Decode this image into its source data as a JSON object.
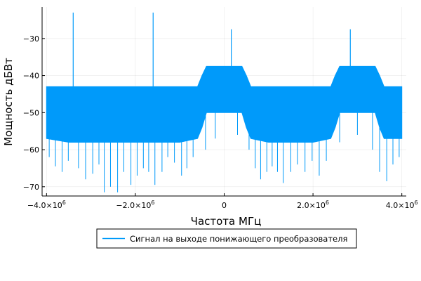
{
  "chart_data": {
    "type": "line",
    "title": "",
    "xlabel": "Частота МГц",
    "ylabel": "Мощность дБВт",
    "xlim": [
      -4100000,
      4100000
    ],
    "ylim": [
      -72.5,
      -21.5
    ],
    "x_ticks": [
      {
        "value": -4000000,
        "mantissa": "−4.0×10",
        "exponent": "6"
      },
      {
        "value": -2000000,
        "mantissa": "−2.0×10",
        "exponent": "6"
      },
      {
        "value": 0,
        "mantissa": "0",
        "exponent": ""
      },
      {
        "value": 2000000,
        "mantissa": "2.0×10",
        "exponent": "6"
      },
      {
        "value": 4000000,
        "mantissa": "4.0×10",
        "exponent": "6"
      }
    ],
    "y_ticks": [
      {
        "value": -30,
        "label": "−30"
      },
      {
        "value": -40,
        "label": "−40"
      },
      {
        "value": -50,
        "label": "−50"
      },
      {
        "value": -60,
        "label": "−60"
      },
      {
        "value": -70,
        "label": "−70"
      }
    ],
    "grid": true,
    "legend_position": "bottom-outside",
    "series": [
      {
        "name": "Сигнал на выходе понижающего преобразователя",
        "color": "#009AFA",
        "band": {
          "x": [
            -4000000,
            -3500000,
            -3000000,
            -2500000,
            -2000000,
            -1500000,
            -1000000,
            -600000,
            -500000,
            -400000,
            0,
            400000,
            500000,
            600000,
            1000000,
            1500000,
            2000000,
            2400000,
            2500000,
            2600000,
            3000000,
            3400000,
            3500000,
            3600000,
            4000000
          ],
          "upper": [
            -43,
            -43,
            -43,
            -43,
            -43,
            -43,
            -43,
            -43,
            -40,
            -37.5,
            -37.5,
            -37.5,
            -40,
            -43,
            -43,
            -43,
            -43,
            -43,
            -40,
            -37.5,
            -37.5,
            -37.5,
            -40,
            -43,
            -43
          ],
          "lower": [
            -57,
            -58,
            -58,
            -58,
            -58,
            -58,
            -58,
            -57,
            -54,
            -50,
            -50,
            -50,
            -54,
            -57,
            -58,
            -58,
            -58,
            -57,
            -54,
            -50,
            -50,
            -50,
            -54,
            -57,
            -57
          ]
        },
        "spikes": [
          {
            "x": -3400000,
            "y": -23
          },
          {
            "x": -1600000,
            "y": -23
          },
          {
            "x": 160000,
            "y": -27.5
          },
          {
            "x": 2840000,
            "y": -27.5
          }
        ],
        "dips": [
          {
            "x": -3940000,
            "y": -62
          },
          {
            "x": -3800000,
            "y": -64.5
          },
          {
            "x": -3650000,
            "y": -66
          },
          {
            "x": -3510000,
            "y": -63
          },
          {
            "x": -3280000,
            "y": -65
          },
          {
            "x": -3120000,
            "y": -68
          },
          {
            "x": -2960000,
            "y": -66.5
          },
          {
            "x": -2820000,
            "y": -64
          },
          {
            "x": -2700000,
            "y": -71.5
          },
          {
            "x": -2560000,
            "y": -70
          },
          {
            "x": -2400000,
            "y": -71.5
          },
          {
            "x": -2260000,
            "y": -66
          },
          {
            "x": -2100000,
            "y": -69.5
          },
          {
            "x": -1960000,
            "y": -67
          },
          {
            "x": -1820000,
            "y": -65
          },
          {
            "x": -1700000,
            "y": -66
          },
          {
            "x": -1560000,
            "y": -69.5
          },
          {
            "x": -1400000,
            "y": -66
          },
          {
            "x": -1270000,
            "y": -62
          },
          {
            "x": -1120000,
            "y": -63.5
          },
          {
            "x": -960000,
            "y": -67
          },
          {
            "x": -840000,
            "y": -65
          },
          {
            "x": -700000,
            "y": -62
          },
          {
            "x": -420000,
            "y": -60
          },
          {
            "x": -200000,
            "y": -57
          },
          {
            "x": 300000,
            "y": -56
          },
          {
            "x": 560000,
            "y": -60
          },
          {
            "x": 700000,
            "y": -65
          },
          {
            "x": 820000,
            "y": -68
          },
          {
            "x": 960000,
            "y": -66
          },
          {
            "x": 1080000,
            "y": -64.5
          },
          {
            "x": 1200000,
            "y": -66
          },
          {
            "x": 1330000,
            "y": -69
          },
          {
            "x": 1500000,
            "y": -66
          },
          {
            "x": 1650000,
            "y": -64
          },
          {
            "x": 1820000,
            "y": -66
          },
          {
            "x": 1980000,
            "y": -63
          },
          {
            "x": 2140000,
            "y": -67
          },
          {
            "x": 2300000,
            "y": -63
          },
          {
            "x": 2600000,
            "y": -58
          },
          {
            "x": 3000000,
            "y": -56
          },
          {
            "x": 3340000,
            "y": -60
          },
          {
            "x": 3500000,
            "y": -66
          },
          {
            "x": 3660000,
            "y": -68.5
          },
          {
            "x": 3800000,
            "y": -64
          },
          {
            "x": 3940000,
            "y": -62
          }
        ]
      }
    ]
  }
}
